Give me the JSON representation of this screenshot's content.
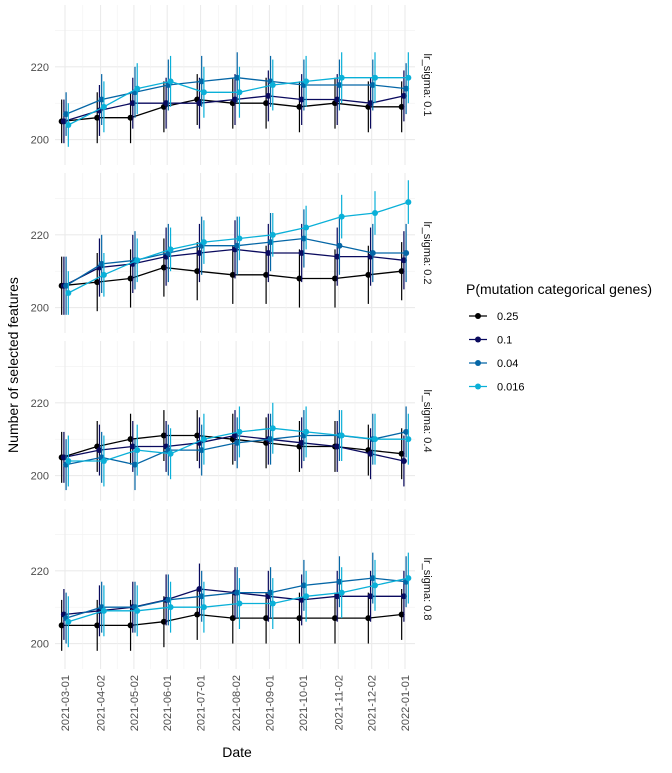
{
  "chart_data": {
    "type": "line",
    "subtype": "faceted line with points and error bars",
    "xlabel": "Date",
    "ylabel": "Number of selected features",
    "x_ticks": [
      "2021-03-01",
      "2021-04-02",
      "2021-05-02",
      "2021-06-01",
      "2021-07-01",
      "2021-08-02",
      "2021-09-01",
      "2021-10-01",
      "2021-11-02",
      "2021-12-02",
      "2022-01-01"
    ],
    "x_range": [
      "2021-02-20",
      "2022-01-10"
    ],
    "y_ticks": [
      200,
      220
    ],
    "ylim": [
      193,
      237
    ],
    "grid": true,
    "legend": {
      "title": "P(mutation categorical genes)",
      "position": "right",
      "entries": [
        "0.25",
        "0.1",
        "0.04",
        "0.016"
      ]
    },
    "series_colors": [
      "#000000",
      "#0a0a5e",
      "#0566a6",
      "#0ab0d8"
    ],
    "dates": [
      "2021-03-01",
      "2021-04-02",
      "2021-05-02",
      "2021-06-01",
      "2021-07-01",
      "2021-08-02",
      "2021-09-01",
      "2021-10-01",
      "2021-11-02",
      "2021-12-02",
      "2022-01-01"
    ],
    "dodge_days": [
      -3,
      -1,
      1,
      3
    ],
    "facets": [
      {
        "label": "lr_sigma: 0.1",
        "series": [
          {
            "name": "0.25",
            "values": [
              205,
              206,
              206,
              209,
              211,
              210,
              210,
              209,
              210,
              209,
              209
            ],
            "err": [
              6,
              7,
              7,
              7,
              7,
              7,
              7,
              7,
              7,
              7,
              7
            ]
          },
          {
            "name": "0.1",
            "values": [
              205,
              208,
              210,
              210,
              210,
              211,
              212,
              211,
              211,
              210,
              212
            ],
            "err": [
              6,
              7,
              7,
              7,
              7,
              7,
              7,
              7,
              7,
              7,
              7
            ]
          },
          {
            "name": "0.04",
            "values": [
              207,
              211,
              213,
              215,
              216,
              217,
              216,
              215,
              215,
              215,
              214
            ],
            "err": [
              6,
              7,
              7,
              7,
              7,
              7,
              7,
              7,
              7,
              7,
              7
            ]
          },
          {
            "name": "0.016",
            "values": [
              204,
              209,
              214,
              216,
              213,
              213,
              215,
              216,
              217,
              217,
              217
            ],
            "err": [
              6,
              7,
              7,
              7,
              7,
              7,
              7,
              7,
              7,
              7,
              7
            ]
          }
        ]
      },
      {
        "label": "lr_sigma: 0.2",
        "series": [
          {
            "name": "0.25",
            "values": [
              206,
              207,
              208,
              211,
              210,
              209,
              209,
              208,
              208,
              209,
              210
            ],
            "err": [
              8,
              8,
              8,
              8,
              8,
              8,
              8,
              8,
              8,
              8,
              8
            ]
          },
          {
            "name": "0.1",
            "values": [
              206,
              211,
              212,
              214,
              215,
              216,
              215,
              215,
              214,
              214,
              213
            ],
            "err": [
              8,
              8,
              8,
              8,
              8,
              8,
              8,
              8,
              8,
              8,
              8
            ]
          },
          {
            "name": "0.04",
            "values": [
              206,
              212,
              213,
              215,
              217,
              217,
              218,
              219,
              217,
              215,
              215
            ],
            "err": [
              8,
              8,
              8,
              8,
              8,
              8,
              8,
              8,
              8,
              8,
              8
            ]
          },
          {
            "name": "0.016",
            "values": [
              204,
              209,
              213,
              216,
              218,
              219,
              220,
              222,
              225,
              226,
              229
            ],
            "err": [
              6,
              6,
              6,
              6,
              6,
              6,
              6,
              6,
              6,
              6,
              6
            ]
          }
        ]
      },
      {
        "label": "lr_sigma: 0.4",
        "series": [
          {
            "name": "0.25",
            "values": [
              205,
              208,
              210,
              211,
              211,
              210,
              209,
              208,
              208,
              207,
              206
            ],
            "err": [
              7,
              7,
              7,
              7,
              7,
              7,
              7,
              7,
              7,
              7,
              7
            ]
          },
          {
            "name": "0.1",
            "values": [
              205,
              207,
              208,
              208,
              209,
              211,
              210,
              209,
              208,
              206,
              204
            ],
            "err": [
              7,
              7,
              7,
              7,
              7,
              7,
              7,
              7,
              7,
              7,
              7
            ]
          },
          {
            "name": "0.04",
            "values": [
              203,
              205,
              203,
              207,
              207,
              209,
              210,
              211,
              211,
              210,
              212
            ],
            "err": [
              7,
              7,
              7,
              7,
              7,
              7,
              7,
              7,
              7,
              7,
              7
            ]
          },
          {
            "name": "0.016",
            "values": [
              204,
              204,
              207,
              206,
              210,
              212,
              213,
              212,
              211,
              210,
              210
            ],
            "err": [
              7,
              7,
              7,
              7,
              7,
              7,
              7,
              7,
              7,
              7,
              7
            ]
          }
        ]
      },
      {
        "label": "lr_sigma: 0.8",
        "series": [
          {
            "name": "0.25",
            "values": [
              205,
              205,
              205,
              206,
              208,
              207,
              207,
              207,
              207,
              207,
              208
            ],
            "err": [
              7,
              7,
              7,
              7,
              7,
              7,
              7,
              7,
              7,
              7,
              7
            ]
          },
          {
            "name": "0.1",
            "values": [
              208,
              209,
              210,
              212,
              215,
              214,
              213,
              212,
              213,
              213,
              213
            ],
            "err": [
              7,
              7,
              7,
              7,
              7,
              7,
              7,
              7,
              7,
              7,
              7
            ]
          },
          {
            "name": "0.04",
            "values": [
              207,
              210,
              210,
              212,
              213,
              214,
              214,
              216,
              217,
              218,
              217
            ],
            "err": [
              7,
              7,
              7,
              7,
              7,
              7,
              7,
              7,
              7,
              7,
              7
            ]
          },
          {
            "name": "0.016",
            "values": [
              206,
              209,
              209,
              210,
              210,
              211,
              211,
              213,
              214,
              216,
              218
            ],
            "err": [
              7,
              7,
              7,
              7,
              7,
              7,
              7,
              7,
              7,
              7,
              7
            ]
          }
        ]
      }
    ]
  }
}
